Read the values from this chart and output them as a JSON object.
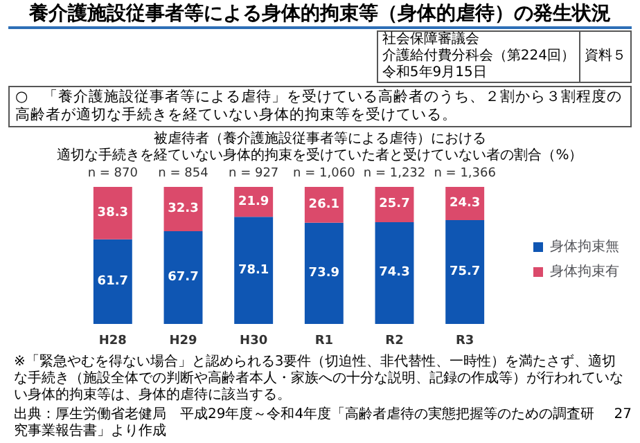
{
  "chart_data": {
    "type": "bar",
    "title": "養介護施設従事者等による身体的拘束等（身体的虐待）の発生状況",
    "subtitle": "○　「養介護施設従事者等による虐待」を受けている高齢者のうち、２割から３割程度の高齢者が適切な手続きを経ていない身体的拘束等を受けている。",
    "categories": [
      "H28",
      "H29",
      "H30",
      "R1",
      "R2",
      "R3"
    ],
    "stacked": true,
    "data_labels": true,
    "legend": "right",
    "series": [
      {
        "name": "身体拘束無",
        "color": "#0f56b3",
        "values": [
          61.7,
          67.7,
          78.1,
          73.9,
          74.3,
          75.7
        ]
      },
      {
        "name": "身体拘束有",
        "color": "#db4a6b",
        "values": [
          38.3,
          32.3,
          21.9,
          26.1,
          25.7,
          24.3
        ]
      }
    ],
    "annotations": [
      "被虐待者（養介護施設従事者等による虐待）における",
      "適切な手続きを経ていない身体的拘束を受けていた者と受けていない者の割合（%）",
      "社会保障審議会",
      "介護給付費分科会（第224回）",
      "資料５",
      "令和5年9月15日",
      "※「緊急やむを得ない場合」と認められる3要件（切迫性、非代替性、一時性）を満たさず、適切な手続き（施設全体での判断や高齢者本人・家族への十分な説明、記録の作成等）が行われていない身体的拘束等は、身体的虐待に該当する。",
      "出典：厚生労働省老健局　平成29年度～令和4年度「高齢者虐待の実態把握等のための調査研究事業報告書」より作成",
      "27",
      {
        "text": "n = 870",
        "x": "H28",
        "y": 100
      },
      {
        "text": "n = 854",
        "x": "H29",
        "y": 100
      },
      {
        "text": "n = 927",
        "x": "H30",
        "y": 100
      },
      {
        "text": "n = 1,060",
        "x": "R1",
        "y": 100
      },
      {
        "text": "n = 1,232",
        "x": "R2",
        "y": 100
      },
      {
        "text": "n = 1,366",
        "x": "R3",
        "y": 100
      }
    ]
  }
}
